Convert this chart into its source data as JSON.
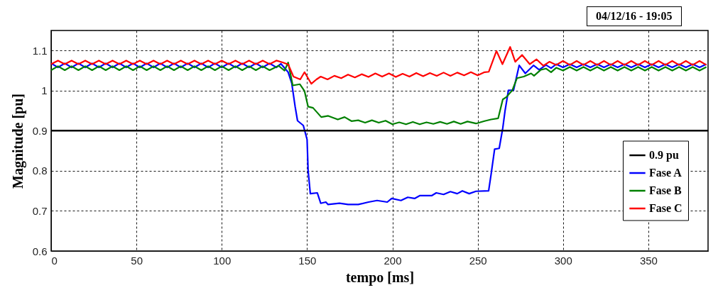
{
  "chart_data": {
    "type": "line",
    "xlabel": "tempo [ms]",
    "ylabel": "Magnitude [pu]",
    "annotations": [
      "04/12/16 - 19:05"
    ],
    "xlim": [
      0,
      385
    ],
    "ylim": [
      0.6,
      1.15
    ],
    "xticks": [
      0,
      50,
      100,
      150,
      200,
      250,
      300,
      350
    ],
    "yticks": [
      0.6,
      0.7,
      0.8,
      0.9,
      1,
      1.1
    ],
    "grid": true,
    "legend": "right",
    "line_style": "solid",
    "marker": "none",
    "ref_lines": [
      {
        "axis": "y",
        "value": 0.9,
        "label": "0.9 pu",
        "color": "#000000"
      }
    ],
    "series": [
      {
        "name": "Fase A",
        "color": "#0000ff",
        "x": [
          0,
          4,
          8,
          12,
          16,
          20,
          24,
          28,
          32,
          36,
          40,
          44,
          48,
          52,
          56,
          60,
          64,
          68,
          72,
          76,
          80,
          84,
          88,
          92,
          96,
          100,
          104,
          108,
          112,
          116,
          120,
          124,
          128,
          132,
          134.7,
          138.9,
          141,
          143,
          144.4,
          147.8,
          150,
          150.6,
          151.9,
          156,
          158,
          161,
          162.3,
          169,
          174,
          180,
          186,
          191,
          197,
          199.6,
          205,
          209,
          213,
          216,
          223,
          225.7,
          230,
          234,
          238,
          241,
          245,
          249,
          256.4,
          257.8,
          259.9,
          262.6,
          264.7,
          266,
          268,
          271,
          274.3,
          277.9,
          282.7,
          286,
          290,
          293,
          296,
          300,
          304,
          308,
          312,
          316,
          320,
          324,
          328,
          332,
          336,
          340,
          344,
          348,
          352,
          356,
          360,
          364,
          368,
          372,
          376,
          380,
          384
        ],
        "values": [
          1.068,
          1.058,
          1.068,
          1.058,
          1.068,
          1.058,
          1.068,
          1.058,
          1.068,
          1.058,
          1.068,
          1.058,
          1.068,
          1.058,
          1.068,
          1.058,
          1.068,
          1.058,
          1.068,
          1.058,
          1.068,
          1.058,
          1.068,
          1.058,
          1.068,
          1.058,
          1.068,
          1.058,
          1.068,
          1.058,
          1.068,
          1.058,
          1.068,
          1.058,
          1.067,
          1.046,
          1.019,
          0.96,
          0.925,
          0.913,
          0.878,
          0.801,
          0.743,
          0.745,
          0.719,
          0.722,
          0.716,
          0.719,
          0.716,
          0.716,
          0.722,
          0.726,
          0.722,
          0.731,
          0.726,
          0.734,
          0.731,
          0.738,
          0.738,
          0.745,
          0.741,
          0.748,
          0.743,
          0.75,
          0.743,
          0.749,
          0.75,
          0.79,
          0.854,
          0.856,
          0.907,
          0.949,
          1.001,
          1.001,
          1.063,
          1.043,
          1.063,
          1.052,
          1.064,
          1.056,
          1.066,
          1.058,
          1.066,
          1.058,
          1.066,
          1.058,
          1.066,
          1.058,
          1.066,
          1.058,
          1.066,
          1.058,
          1.066,
          1.058,
          1.066,
          1.058,
          1.066,
          1.058,
          1.066,
          1.058,
          1.066,
          1.058,
          1.066
        ]
      },
      {
        "name": "Fase B",
        "color": "#008000",
        "x": [
          0,
          4,
          8,
          12,
          16,
          20,
          24,
          28,
          32,
          36,
          40,
          44,
          48,
          52,
          56,
          60,
          64,
          68,
          72,
          76,
          80,
          84,
          88,
          92,
          96,
          100,
          104,
          108,
          112,
          116,
          120,
          124,
          128,
          133.3,
          136.8,
          138.9,
          141.6,
          145.8,
          148.5,
          150.6,
          153.5,
          158.3,
          162.4,
          168,
          172,
          176,
          180,
          184,
          188,
          192,
          196,
          200,
          204,
          208,
          212,
          216,
          220,
          224,
          228,
          232,
          236,
          240,
          244,
          249,
          254,
          257.8,
          262,
          264.7,
          266.8,
          270.3,
          273,
          277,
          281.3,
          283,
          287,
          290,
          293,
          296,
          300,
          304,
          308,
          312,
          316,
          320,
          324,
          328,
          332,
          336,
          340,
          344,
          348,
          352,
          356,
          360,
          364,
          368,
          372,
          376,
          380,
          384
        ],
        "values": [
          1.051,
          1.061,
          1.051,
          1.061,
          1.051,
          1.061,
          1.051,
          1.061,
          1.051,
          1.061,
          1.051,
          1.061,
          1.051,
          1.061,
          1.051,
          1.061,
          1.051,
          1.061,
          1.051,
          1.061,
          1.051,
          1.061,
          1.051,
          1.061,
          1.051,
          1.061,
          1.051,
          1.061,
          1.051,
          1.061,
          1.051,
          1.061,
          1.051,
          1.062,
          1.05,
          1.07,
          1.013,
          1.016,
          0.999,
          0.96,
          0.957,
          0.934,
          0.937,
          0.928,
          0.934,
          0.924,
          0.926,
          0.92,
          0.926,
          0.92,
          0.925,
          0.916,
          0.921,
          0.916,
          0.922,
          0.916,
          0.921,
          0.917,
          0.922,
          0.917,
          0.923,
          0.917,
          0.923,
          0.918,
          0.924,
          0.928,
          0.931,
          0.978,
          0.984,
          1.001,
          1.031,
          1.035,
          1.043,
          1.037,
          1.052,
          1.055,
          1.046,
          1.057,
          1.05,
          1.059,
          1.05,
          1.059,
          1.05,
          1.059,
          1.05,
          1.059,
          1.05,
          1.059,
          1.05,
          1.059,
          1.05,
          1.059,
          1.05,
          1.059,
          1.05,
          1.059,
          1.05,
          1.059,
          1.05,
          1.059
        ]
      },
      {
        "name": "Fase C",
        "color": "#ff0000",
        "x": [
          0,
          4,
          8,
          12,
          16,
          20,
          24,
          28,
          32,
          36,
          40,
          44,
          48,
          52,
          56,
          60,
          64,
          68,
          72,
          76,
          80,
          84,
          88,
          92,
          96,
          100,
          104,
          108,
          112,
          116,
          120,
          124,
          128,
          132,
          136,
          139,
          142,
          146,
          148.5,
          152.5,
          155.5,
          158,
          162,
          166,
          170,
          174,
          178,
          182,
          186,
          190,
          194,
          198,
          202,
          206,
          210,
          214,
          218,
          222,
          226,
          230,
          234,
          238,
          242,
          246,
          250,
          254,
          256.5,
          261,
          264.5,
          269,
          272,
          276,
          280.5,
          284.5,
          288.5,
          292,
          296,
          300,
          304,
          308,
          312,
          316,
          320,
          324,
          328,
          332,
          336,
          340,
          344,
          348,
          352,
          356,
          360,
          364,
          368,
          372,
          376,
          380,
          384
        ],
        "values": [
          1.066,
          1.075,
          1.066,
          1.075,
          1.066,
          1.075,
          1.066,
          1.075,
          1.066,
          1.075,
          1.066,
          1.075,
          1.066,
          1.075,
          1.066,
          1.075,
          1.066,
          1.075,
          1.066,
          1.075,
          1.066,
          1.075,
          1.066,
          1.075,
          1.066,
          1.075,
          1.066,
          1.075,
          1.066,
          1.075,
          1.066,
          1.075,
          1.066,
          1.075,
          1.07,
          1.065,
          1.035,
          1.028,
          1.046,
          1.017,
          1.028,
          1.035,
          1.028,
          1.037,
          1.031,
          1.04,
          1.033,
          1.041,
          1.034,
          1.043,
          1.035,
          1.043,
          1.034,
          1.042,
          1.035,
          1.044,
          1.036,
          1.044,
          1.037,
          1.045,
          1.037,
          1.045,
          1.038,
          1.046,
          1.038,
          1.046,
          1.047,
          1.099,
          1.066,
          1.109,
          1.072,
          1.089,
          1.066,
          1.078,
          1.062,
          1.072,
          1.064,
          1.074,
          1.064,
          1.074,
          1.064,
          1.074,
          1.064,
          1.074,
          1.064,
          1.074,
          1.064,
          1.074,
          1.064,
          1.074,
          1.064,
          1.074,
          1.064,
          1.074,
          1.064,
          1.074,
          1.064,
          1.074,
          1.064
        ]
      }
    ]
  }
}
